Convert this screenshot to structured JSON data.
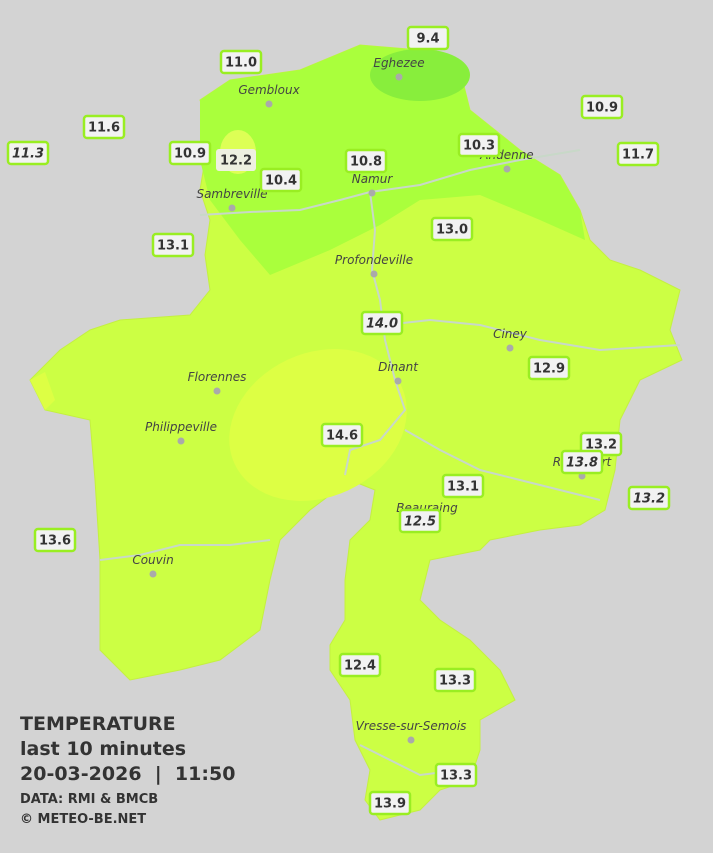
{
  "legend": {
    "title": "TEMPERATURE",
    "subtitle": "last 10 minutes",
    "datetime": "20-03-2026  |  11:50",
    "source": "DATA: RMI & BMCB",
    "copyright": "© METEO-BE.NET"
  },
  "cities": [
    "Eghezee",
    "Gembloux",
    "Andenne",
    "Namur",
    "Sambreville",
    "Profondeville",
    "Ciney",
    "Florennes",
    "Dinant",
    "Philippeville",
    "Rochefort",
    "Beauraing",
    "Couvin",
    "Vresse-sur-Semois"
  ],
  "stations": [
    {
      "label": "9.4"
    },
    {
      "label": "11.0"
    },
    {
      "label": "11.6"
    },
    {
      "label": "11.3",
      "italic": true
    },
    {
      "label": "10.9"
    },
    {
      "label": "12.2"
    },
    {
      "label": "10.4"
    },
    {
      "label": "10.8"
    },
    {
      "label": "10.3"
    },
    {
      "label": "10.9"
    },
    {
      "label": "11.7"
    },
    {
      "label": "13.1"
    },
    {
      "label": "13.0"
    },
    {
      "label": "14.0",
      "italic": true
    },
    {
      "label": "12.9"
    },
    {
      "label": "14.6"
    },
    {
      "label": "13.2"
    },
    {
      "label": "13.8",
      "italic": true
    },
    {
      "label": "13.2",
      "italic": true
    },
    {
      "label": "13.1"
    },
    {
      "label": "12.5",
      "italic": true
    },
    {
      "label": "13.6"
    },
    {
      "label": "12.4"
    },
    {
      "label": "13.3"
    },
    {
      "label": "13.3"
    },
    {
      "label": "13.9"
    }
  ]
}
